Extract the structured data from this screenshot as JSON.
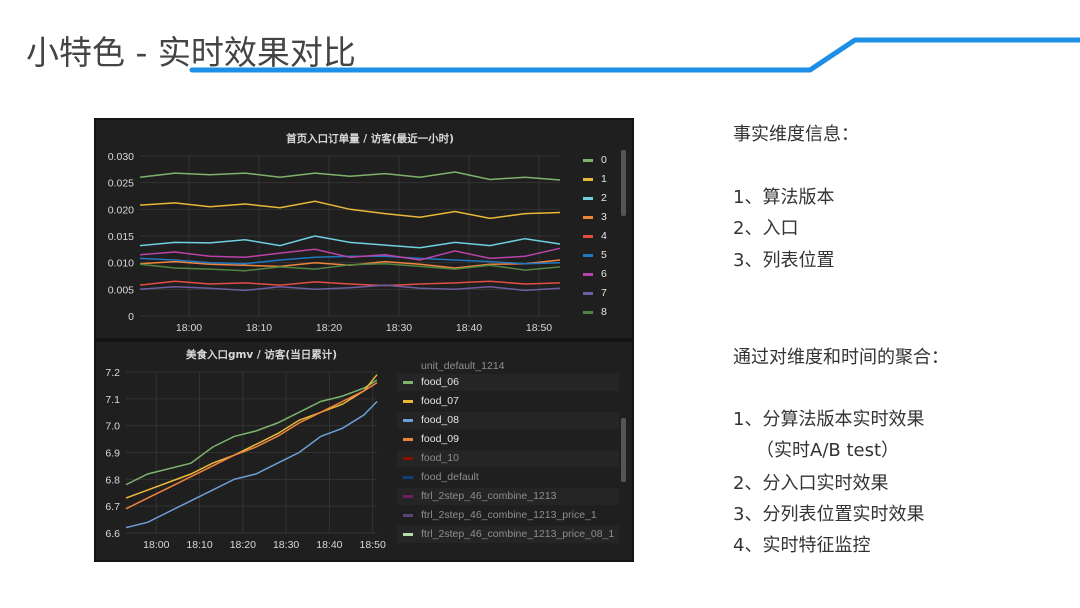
{
  "slide": {
    "title": "小特色 - 实时效果对比",
    "accent_color": "#1e8fe6"
  },
  "right_text": {
    "heading1": "事实维度信息：",
    "dims": [
      "1、算法版本",
      "2、入口",
      "3、列表位置"
    ],
    "heading2": "通过对维度和时间的聚合：",
    "aggs": [
      "1、分算法版本实时效果",
      "（实时A/B test）",
      "2、分入口实时效果",
      "3、分列表位置实时效果",
      "4、实时特征监控"
    ]
  },
  "chart_data": [
    {
      "type": "line",
      "title": "首页入口订单量 / 访客(最近一小时)",
      "x": [
        "17:53",
        "17:58",
        "18:03",
        "18:08",
        "18:13",
        "18:18",
        "18:23",
        "18:28",
        "18:33",
        "18:38",
        "18:43",
        "18:48",
        "18:53"
      ],
      "xticks": [
        "18:00",
        "18:10",
        "18:20",
        "18:30",
        "18:40",
        "18:50"
      ],
      "yticks": [
        "0",
        "0.005",
        "0.010",
        "0.015",
        "0.020",
        "0.025",
        "0.030"
      ],
      "ylim": [
        0,
        0.03
      ],
      "grid": true,
      "legend_position": "right",
      "series": [
        {
          "name": "0",
          "color": "#7eb26d",
          "values": [
            0.026,
            0.0268,
            0.0265,
            0.0268,
            0.026,
            0.0268,
            0.0262,
            0.0267,
            0.026,
            0.027,
            0.0256,
            0.026,
            0.0255
          ]
        },
        {
          "name": "1",
          "color": "#eab839",
          "values": [
            0.0208,
            0.0212,
            0.0205,
            0.021,
            0.0203,
            0.0215,
            0.02,
            0.0192,
            0.0185,
            0.0196,
            0.0183,
            0.0192,
            0.0194
          ]
        },
        {
          "name": "2",
          "color": "#6ed0e0",
          "values": [
            0.0132,
            0.0138,
            0.0137,
            0.0143,
            0.0132,
            0.015,
            0.0138,
            0.0133,
            0.0128,
            0.0138,
            0.0132,
            0.0145,
            0.0135
          ]
        },
        {
          "name": "3",
          "color": "#ef843c",
          "values": [
            0.0098,
            0.0102,
            0.0097,
            0.0095,
            0.0093,
            0.01,
            0.0095,
            0.0102,
            0.0097,
            0.009,
            0.0097,
            0.0098,
            0.0105
          ]
        },
        {
          "name": "4",
          "color": "#e24d42",
          "values": [
            0.0058,
            0.0065,
            0.006,
            0.0062,
            0.0058,
            0.0064,
            0.006,
            0.0057,
            0.006,
            0.0062,
            0.0065,
            0.006,
            0.0062
          ]
        },
        {
          "name": "5",
          "color": "#1f78c1",
          "values": [
            0.0108,
            0.0105,
            0.01,
            0.0098,
            0.0105,
            0.011,
            0.0112,
            0.0112,
            0.0108,
            0.0105,
            0.0102,
            0.0098,
            0.01
          ]
        },
        {
          "name": "6",
          "color": "#ba43a9",
          "values": [
            0.0115,
            0.012,
            0.0112,
            0.011,
            0.0118,
            0.0125,
            0.011,
            0.0115,
            0.0105,
            0.0122,
            0.0108,
            0.0112,
            0.0127
          ]
        },
        {
          "name": "7",
          "color": "#705da0",
          "values": [
            0.005,
            0.0055,
            0.0052,
            0.0048,
            0.0055,
            0.005,
            0.0053,
            0.0058,
            0.0052,
            0.005,
            0.0055,
            0.0048,
            0.0052
          ]
        },
        {
          "name": "8",
          "color": "#508642",
          "values": [
            0.0097,
            0.009,
            0.0088,
            0.0085,
            0.0092,
            0.0088,
            0.0096,
            0.0098,
            0.0093,
            0.0088,
            0.0095,
            0.0086,
            0.0092
          ]
        }
      ]
    },
    {
      "type": "line",
      "title": "美食入口gmv / 访客(当日累计)",
      "x": [
        "17:53",
        "17:58",
        "18:03",
        "18:08",
        "18:13",
        "18:18",
        "18:23",
        "18:28",
        "18:33",
        "18:38",
        "18:43",
        "18:48",
        "18:51"
      ],
      "xticks": [
        "18:00",
        "18:10",
        "18:20",
        "18:30",
        "18:40",
        "18:50"
      ],
      "yticks": [
        "6.6",
        "6.7",
        "6.8",
        "6.9",
        "7.0",
        "7.1",
        "7.2"
      ],
      "ylim": [
        6.6,
        7.2
      ],
      "grid": true,
      "legend_position": "right",
      "legend_cut_top": "unit_default_1214",
      "series": [
        {
          "name": "food_06",
          "color": "#7eb26d",
          "values": [
            6.78,
            6.82,
            6.84,
            6.86,
            6.92,
            6.96,
            6.98,
            7.01,
            7.05,
            7.09,
            7.11,
            7.14,
            7.17
          ],
          "visible": true
        },
        {
          "name": "food_07",
          "color": "#eab839",
          "values": [
            6.73,
            6.76,
            6.79,
            6.82,
            6.86,
            6.89,
            6.93,
            6.97,
            7.02,
            7.05,
            7.08,
            7.13,
            7.19
          ],
          "visible": true
        },
        {
          "name": "food_08",
          "color": "#6d9fd8",
          "values": [
            6.62,
            6.64,
            6.68,
            6.72,
            6.76,
            6.8,
            6.82,
            6.86,
            6.9,
            6.96,
            6.99,
            7.04,
            7.09
          ],
          "visible": true
        },
        {
          "name": "food_09",
          "color": "#ef843c",
          "values": [
            6.69,
            6.73,
            6.77,
            6.81,
            6.85,
            6.89,
            6.92,
            6.96,
            7.01,
            7.05,
            7.09,
            7.13,
            7.16
          ],
          "visible": true
        },
        {
          "name": "food_10",
          "color": "#890f02",
          "visible": false
        },
        {
          "name": "food_default",
          "color": "#0a437c",
          "visible": false
        },
        {
          "name": "ftrl_2step_46_combine_1213",
          "color": "#6d1f62",
          "visible": false
        },
        {
          "name": "ftrl_2step_46_combine_1213_price_1",
          "color": "#584477",
          "visible": false
        },
        {
          "name": "ftrl_2step_46_combine_1213_price_08_1",
          "color": "#b7dbab",
          "visible": false
        }
      ]
    }
  ]
}
